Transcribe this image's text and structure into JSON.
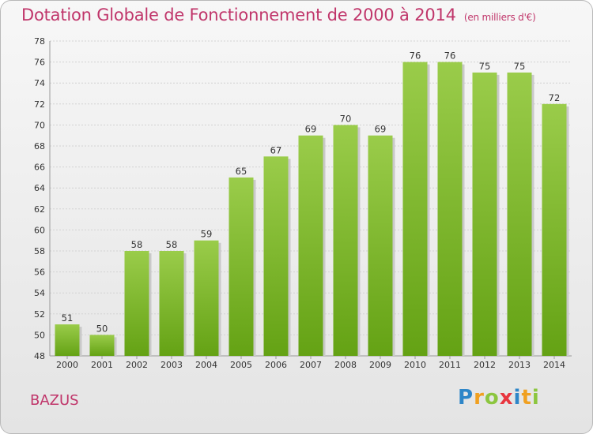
{
  "header": {
    "title": "Dotation Globale de Fonctionnement de 2000 à 2014",
    "subtitle": "(en milliers d'€)"
  },
  "footer": {
    "commune": "BAZUS",
    "logo": {
      "p": "P",
      "r": "r",
      "o": "o",
      "x": "x",
      "i1": "i",
      "t": "t",
      "i2": "i"
    }
  },
  "colors": {
    "accent": "#c0356a",
    "bar_top": "#9acc4a",
    "bar_bottom": "#64a214"
  },
  "chart_data": {
    "type": "bar",
    "title": "Dotation Globale de Fonctionnement de 2000 à 2014",
    "subtitle": "(en milliers d'€)",
    "categories": [
      "2000",
      "2001",
      "2002",
      "2003",
      "2004",
      "2005",
      "2006",
      "2007",
      "2008",
      "2009",
      "2010",
      "2011",
      "2012",
      "2013",
      "2014"
    ],
    "values": [
      51,
      50,
      58,
      58,
      59,
      65,
      67,
      69,
      70,
      69,
      76,
      76,
      75,
      75,
      72
    ],
    "ylim": [
      48,
      78
    ],
    "yticks": [
      48,
      50,
      52,
      54,
      56,
      58,
      60,
      62,
      64,
      66,
      68,
      70,
      72,
      74,
      76,
      78
    ],
    "grid": true,
    "data_labels": true,
    "xlabel": "",
    "ylabel": ""
  }
}
